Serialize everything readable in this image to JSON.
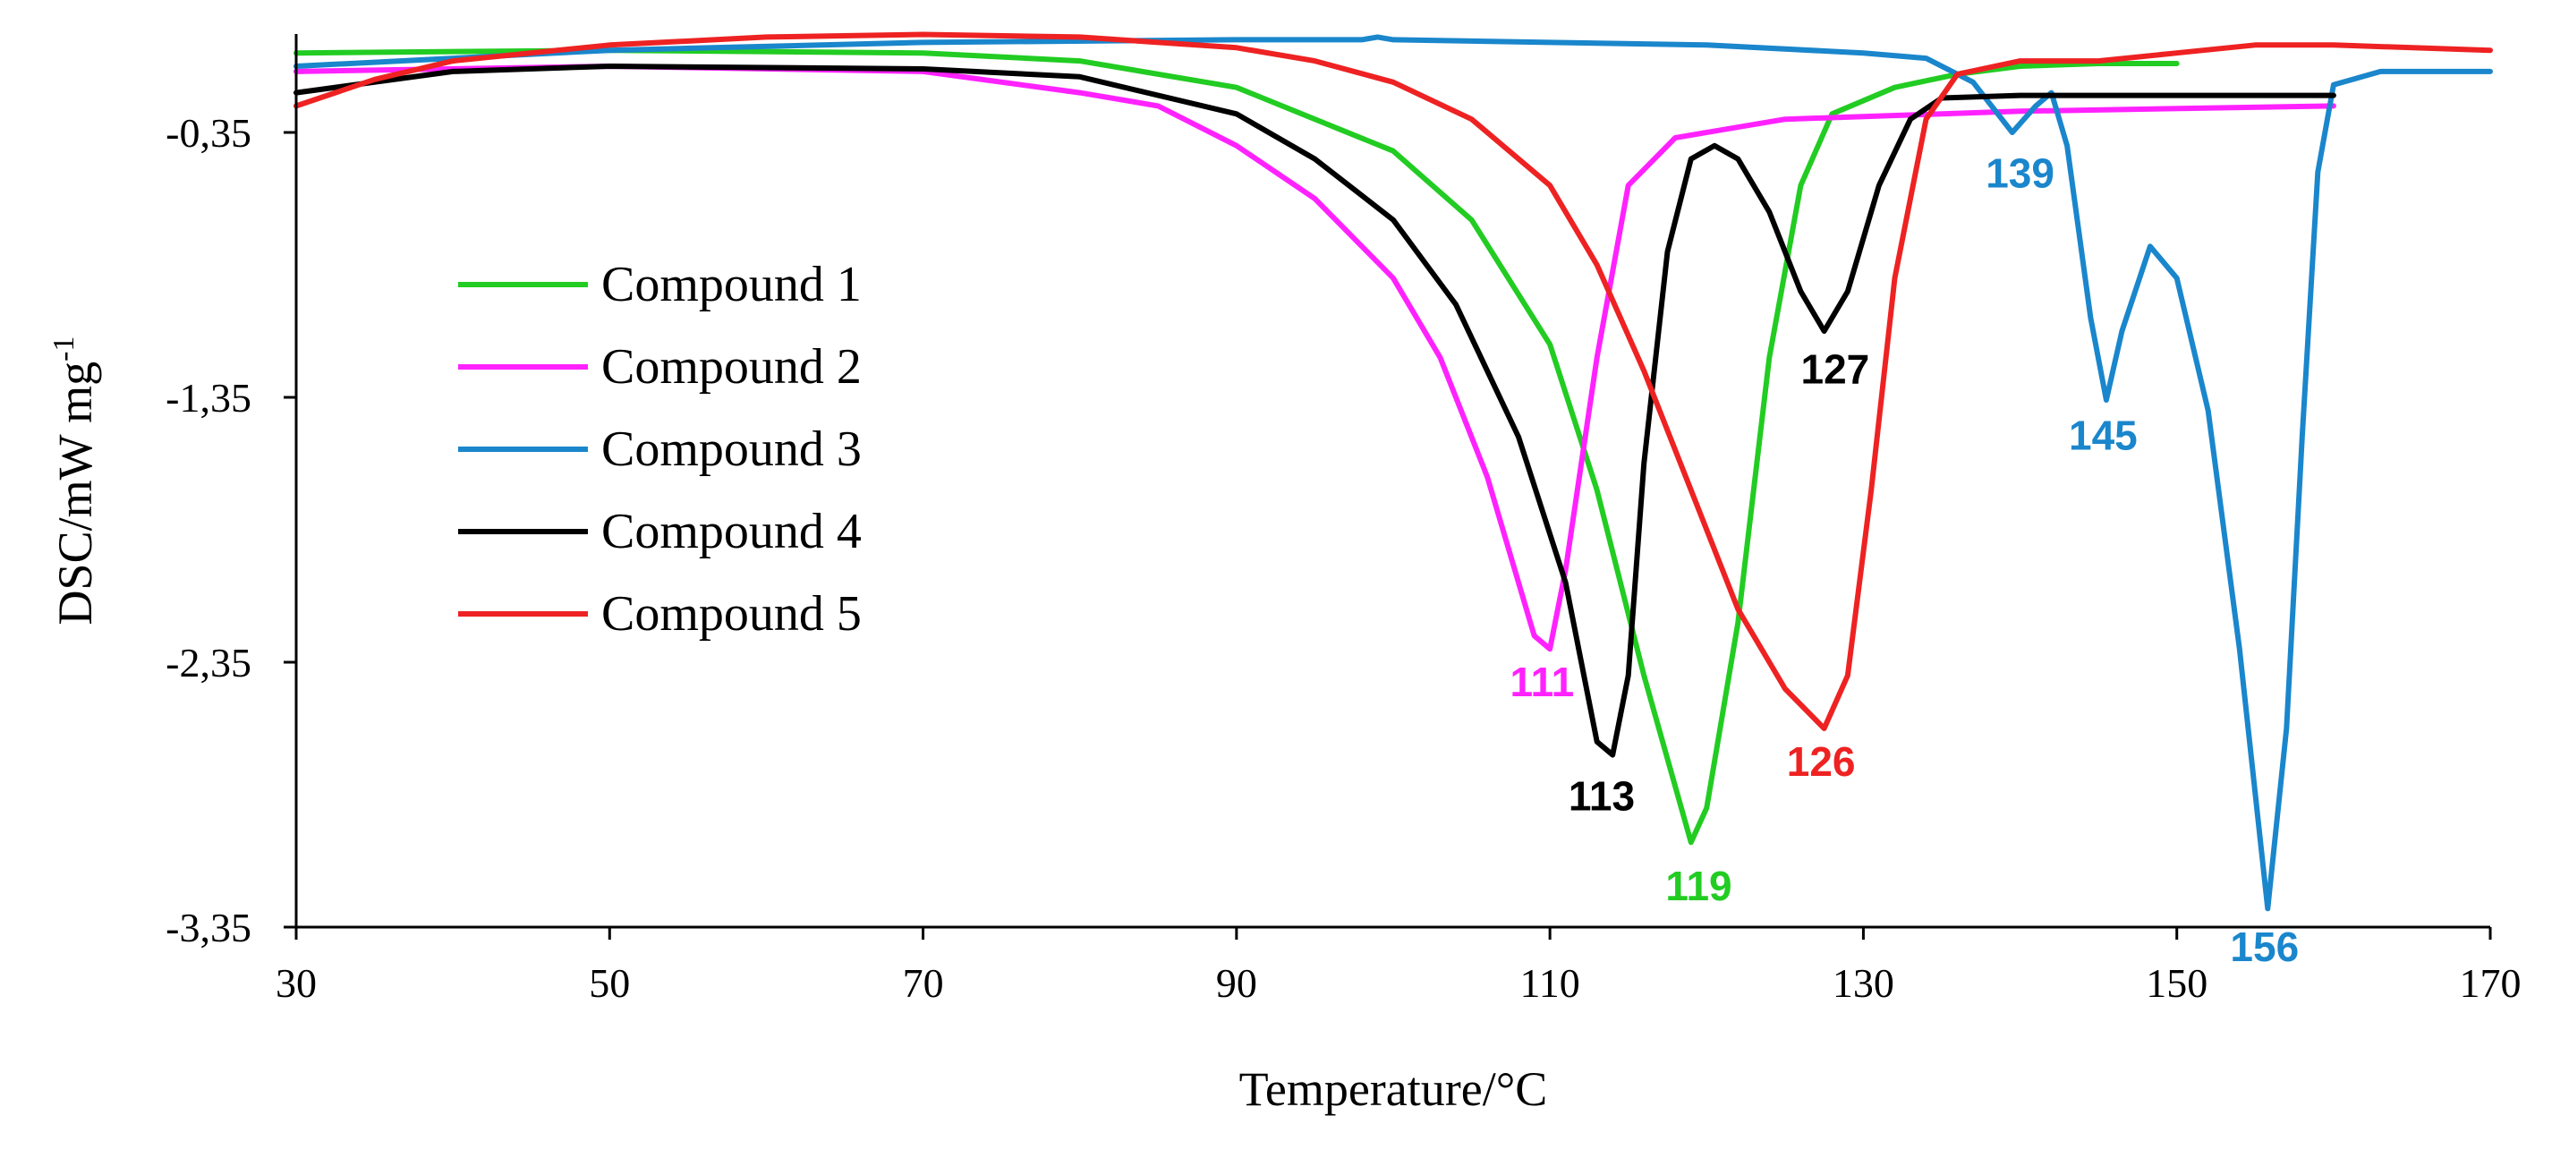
{
  "chart_data": {
    "type": "line",
    "title": "",
    "xlabel": "Temperature/°C",
    "ylabel": "DSC/mW mg",
    "ylabel_superscript": "-1",
    "xlim": [
      30,
      170
    ],
    "ylim": [
      -3.35,
      0.05
    ],
    "x_ticks": [
      "30",
      "50",
      "70",
      "90",
      "110",
      "130",
      "150",
      "170"
    ],
    "x_tick_values": [
      30,
      50,
      70,
      90,
      110,
      130,
      150,
      170
    ],
    "y_ticks": [
      "-0,35",
      "-1,35",
      "-2,35",
      "-3,35"
    ],
    "y_tick_values": [
      -0.35,
      -1.35,
      -2.35,
      -3.35
    ],
    "legend_position": "left",
    "series": [
      {
        "name": "Compound 1",
        "color": "#22cc22",
        "points": [
          [
            30,
            -0.05
          ],
          [
            50,
            -0.04
          ],
          [
            70,
            -0.05
          ],
          [
            80,
            -0.08
          ],
          [
            90,
            -0.18
          ],
          [
            100,
            -0.42
          ],
          [
            105,
            -0.68
          ],
          [
            110,
            -1.15
          ],
          [
            113,
            -1.7
          ],
          [
            116,
            -2.4
          ],
          [
            119,
            -3.03
          ],
          [
            120,
            -2.9
          ],
          [
            122,
            -2.2
          ],
          [
            124,
            -1.2
          ],
          [
            126,
            -0.55
          ],
          [
            128,
            -0.28
          ],
          [
            132,
            -0.18
          ],
          [
            136,
            -0.13
          ],
          [
            140,
            -0.1
          ],
          [
            145,
            -0.09
          ],
          [
            150,
            -0.09
          ]
        ]
      },
      {
        "name": "Compound 2",
        "color": "#ff22ff",
        "points": [
          [
            30,
            -0.12
          ],
          [
            50,
            -0.1
          ],
          [
            70,
            -0.12
          ],
          [
            80,
            -0.2
          ],
          [
            85,
            -0.25
          ],
          [
            90,
            -0.4
          ],
          [
            95,
            -0.6
          ],
          [
            100,
            -0.9
          ],
          [
            103,
            -1.2
          ],
          [
            106,
            -1.65
          ],
          [
            109,
            -2.25
          ],
          [
            110,
            -2.3
          ],
          [
            111,
            -2.0
          ],
          [
            113,
            -1.2
          ],
          [
            115,
            -0.55
          ],
          [
            118,
            -0.37
          ],
          [
            125,
            -0.3
          ],
          [
            140,
            -0.27
          ],
          [
            160,
            -0.25
          ]
        ]
      },
      {
        "name": "Compound 3",
        "color": "#1a86cc",
        "points": [
          [
            30,
            -0.1
          ],
          [
            50,
            -0.04
          ],
          [
            70,
            -0.01
          ],
          [
            90,
            0.0
          ],
          [
            98,
            0.0
          ],
          [
            99,
            0.01
          ],
          [
            100,
            0.0
          ],
          [
            110,
            -0.01
          ],
          [
            120,
            -0.02
          ],
          [
            130,
            -0.05
          ],
          [
            134,
            -0.07
          ],
          [
            137,
            -0.16
          ],
          [
            139.5,
            -0.35
          ],
          [
            141,
            -0.25
          ],
          [
            142,
            -0.2
          ],
          [
            143,
            -0.4
          ],
          [
            144.5,
            -1.05
          ],
          [
            145.5,
            -1.36
          ],
          [
            146.5,
            -1.1
          ],
          [
            148.3,
            -0.78
          ],
          [
            150,
            -0.9
          ],
          [
            152,
            -1.4
          ],
          [
            154,
            -2.3
          ],
          [
            155.8,
            -3.28
          ],
          [
            157,
            -2.6
          ],
          [
            158,
            -1.5
          ],
          [
            159,
            -0.5
          ],
          [
            160,
            -0.17
          ],
          [
            163,
            -0.12
          ],
          [
            170,
            -0.12
          ]
        ]
      },
      {
        "name": "Compound 4",
        "color": "#000000",
        "points": [
          [
            30,
            -0.2
          ],
          [
            40,
            -0.12
          ],
          [
            50,
            -0.1
          ],
          [
            70,
            -0.11
          ],
          [
            80,
            -0.14
          ],
          [
            90,
            -0.28
          ],
          [
            95,
            -0.45
          ],
          [
            100,
            -0.68
          ],
          [
            104,
            -1.0
          ],
          [
            108,
            -1.5
          ],
          [
            111,
            -2.05
          ],
          [
            113,
            -2.65
          ],
          [
            114,
            -2.7
          ],
          [
            115,
            -2.4
          ],
          [
            116,
            -1.6
          ],
          [
            117.5,
            -0.8
          ],
          [
            119,
            -0.45
          ],
          [
            120.5,
            -0.4
          ],
          [
            122,
            -0.45
          ],
          [
            124,
            -0.65
          ],
          [
            126,
            -0.95
          ],
          [
            127.5,
            -1.1
          ],
          [
            129,
            -0.95
          ],
          [
            131,
            -0.55
          ],
          [
            133,
            -0.3
          ],
          [
            135,
            -0.22
          ],
          [
            140,
            -0.21
          ],
          [
            150,
            -0.21
          ],
          [
            160,
            -0.21
          ]
        ]
      },
      {
        "name": "Compound 5",
        "color": "#ee2222",
        "points": [
          [
            30,
            -0.25
          ],
          [
            35,
            -0.15
          ],
          [
            40,
            -0.08
          ],
          [
            50,
            -0.02
          ],
          [
            60,
            0.01
          ],
          [
            70,
            0.02
          ],
          [
            80,
            0.01
          ],
          [
            90,
            -0.03
          ],
          [
            95,
            -0.08
          ],
          [
            100,
            -0.16
          ],
          [
            105,
            -0.3
          ],
          [
            110,
            -0.55
          ],
          [
            113,
            -0.85
          ],
          [
            116,
            -1.25
          ],
          [
            119,
            -1.7
          ],
          [
            122,
            -2.15
          ],
          [
            125,
            -2.45
          ],
          [
            127.5,
            -2.6
          ],
          [
            129,
            -2.4
          ],
          [
            130.5,
            -1.7
          ],
          [
            132,
            -0.9
          ],
          [
            134,
            -0.3
          ],
          [
            136,
            -0.13
          ],
          [
            140,
            -0.08
          ],
          [
            145,
            -0.08
          ],
          [
            150,
            -0.05
          ],
          [
            155,
            -0.02
          ],
          [
            160,
            -0.02
          ],
          [
            170,
            -0.04
          ]
        ]
      }
    ],
    "annotations": [
      {
        "text": "111",
        "x": 109.5,
        "y": -2.35,
        "color": "#ff22ff",
        "anchor": "middle"
      },
      {
        "text": "113",
        "x": 113.3,
        "y": -2.78,
        "color": "#000000",
        "anchor": "middle"
      },
      {
        "text": "119",
        "x": 119.5,
        "y": -3.12,
        "color": "#22cc22",
        "anchor": "middle"
      },
      {
        "text": "126",
        "x": 127.3,
        "y": -2.65,
        "color": "#ee2222",
        "anchor": "middle"
      },
      {
        "text": "127",
        "x": 128.2,
        "y": -1.17,
        "color": "#000000",
        "anchor": "middle"
      },
      {
        "text": "139",
        "x": 140,
        "y": -0.43,
        "color": "#1a86cc",
        "anchor": "middle"
      },
      {
        "text": "145",
        "x": 145.3,
        "y": -1.42,
        "color": "#1a86cc",
        "anchor": "middle"
      },
      {
        "text": "156",
        "x": 155.6,
        "y": -3.35,
        "color": "#1a86cc",
        "anchor": "middle"
      }
    ]
  }
}
